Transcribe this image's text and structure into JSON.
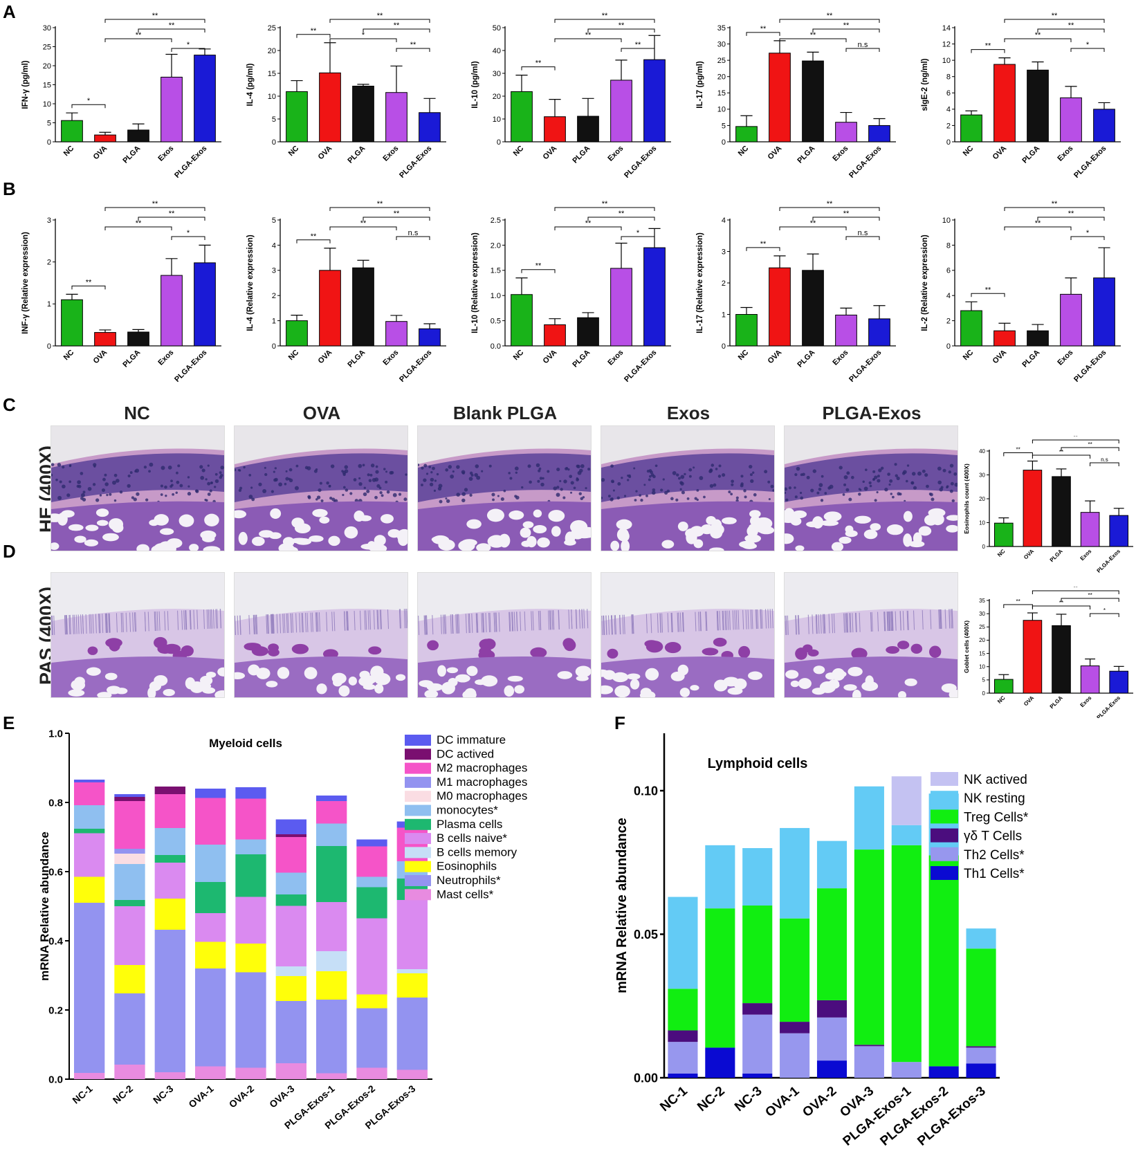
{
  "panels": {
    "A": "A",
    "B": "B",
    "C": "C",
    "D": "D",
    "E": "E",
    "F": "F"
  },
  "colors": {
    "NC": "#19b319",
    "OVA": "#f01414",
    "PLGA": "#111111",
    "Exos": "#b84fe6",
    "PLGA-Exos": "#1a1ad6"
  },
  "histology": {
    "columns": [
      "NC",
      "OVA",
      "Blank PLGA",
      "Exos",
      "PLGA-Exos"
    ],
    "rows": [
      "HE (400X)",
      "PAS (400X)"
    ]
  },
  "chart_data": [
    {
      "id": "A-IFN",
      "type": "bar",
      "panel": "A",
      "categories": [
        "NC",
        "OVA",
        "PLGA",
        "Exos",
        "PLGA-Exos"
      ],
      "values": [
        5.6,
        1.8,
        3.1,
        17.0,
        22.8
      ],
      "errors": [
        2.0,
        0.7,
        1.6,
        6.0,
        1.6
      ],
      "ylabel": "IFN-γ (pg/ml)",
      "ylim": [
        0,
        30
      ],
      "ticks": [
        "0",
        "5",
        "10",
        "15",
        "20",
        "25",
        "30"
      ],
      "sig": [
        {
          "from": 0,
          "to": 1,
          "label": "*"
        },
        {
          "from": 1,
          "to": 4,
          "label": "**"
        },
        {
          "from": 1,
          "to": 3,
          "label": "**"
        },
        {
          "from": 2,
          "to": 4,
          "label": "**"
        },
        {
          "from": 3,
          "to": 4,
          "label": "*"
        }
      ]
    },
    {
      "id": "A-IL4",
      "type": "bar",
      "panel": "A",
      "categories": [
        "NC",
        "OVA",
        "PLGA",
        "Exos",
        "PLGA-Exos"
      ],
      "values": [
        11.0,
        15.1,
        12.2,
        10.8,
        6.4
      ],
      "errors": [
        2.4,
        6.6,
        0.4,
        5.8,
        3.1
      ],
      "ylabel": "IL-4 (pg/ml)",
      "ylim": [
        0,
        25
      ],
      "ticks": [
        "0",
        "5",
        "10",
        "15",
        "20",
        "25"
      ],
      "sig": [
        {
          "from": 0,
          "to": 1,
          "label": "**"
        },
        {
          "from": 1,
          "to": 4,
          "label": "**"
        },
        {
          "from": 1,
          "to": 3,
          "label": "*"
        },
        {
          "from": 2,
          "to": 4,
          "label": "**"
        },
        {
          "from": 3,
          "to": 4,
          "label": "**"
        }
      ]
    },
    {
      "id": "A-IL10",
      "type": "bar",
      "panel": "A",
      "categories": [
        "NC",
        "OVA",
        "PLGA",
        "Exos",
        "PLGA-Exos"
      ],
      "values": [
        22.0,
        11.0,
        11.2,
        27.0,
        36.0
      ],
      "errors": [
        7.2,
        7.6,
        7.8,
        8.8,
        10.6
      ],
      "ylabel": "IL-10 (pg/ml)",
      "ylim": [
        0,
        50
      ],
      "ticks": [
        "0",
        "10",
        "20",
        "30",
        "40",
        "50"
      ],
      "sig": [
        {
          "from": 0,
          "to": 1,
          "label": "**"
        },
        {
          "from": 1,
          "to": 4,
          "label": "**"
        },
        {
          "from": 1,
          "to": 3,
          "label": "**"
        },
        {
          "from": 2,
          "to": 4,
          "label": "**"
        },
        {
          "from": 3,
          "to": 4,
          "label": "**"
        }
      ]
    },
    {
      "id": "A-IL17",
      "type": "bar",
      "panel": "A",
      "categories": [
        "NC",
        "OVA",
        "PLGA",
        "Exos",
        "PLGA-Exos"
      ],
      "values": [
        4.7,
        27.2,
        24.8,
        6.0,
        5.0
      ],
      "errors": [
        3.3,
        3.8,
        2.7,
        3.0,
        2.1
      ],
      "ylabel": "IL-17 (pg/ml)",
      "ylim": [
        0,
        35
      ],
      "ticks": [
        "0",
        "5",
        "10",
        "15",
        "20",
        "25",
        "30",
        "35"
      ],
      "sig": [
        {
          "from": 0,
          "to": 1,
          "label": "**"
        },
        {
          "from": 1,
          "to": 4,
          "label": "**"
        },
        {
          "from": 1,
          "to": 3,
          "label": "**"
        },
        {
          "from": 2,
          "to": 4,
          "label": "**"
        },
        {
          "from": 3,
          "to": 4,
          "label": "n.s"
        }
      ]
    },
    {
      "id": "A-sIgE",
      "type": "bar",
      "panel": "A",
      "categories": [
        "NC",
        "OVA",
        "PLGA",
        "Exos",
        "PLGA-Exos"
      ],
      "values": [
        3.3,
        9.5,
        8.8,
        5.4,
        4.0
      ],
      "errors": [
        0.5,
        0.8,
        1.0,
        1.4,
        0.8
      ],
      "ylabel": "sIgE-2 (ng/ml)",
      "ylim": [
        0,
        14
      ],
      "ticks": [
        "0",
        "2",
        "4",
        "6",
        "8",
        "10",
        "12",
        "14"
      ],
      "sig": [
        {
          "from": 0,
          "to": 1,
          "label": "**"
        },
        {
          "from": 1,
          "to": 4,
          "label": "**"
        },
        {
          "from": 1,
          "to": 3,
          "label": "**"
        },
        {
          "from": 2,
          "to": 4,
          "label": "**"
        },
        {
          "from": 3,
          "to": 4,
          "label": "*"
        }
      ]
    },
    {
      "id": "B-INF",
      "type": "bar",
      "panel": "B",
      "categories": [
        "NC",
        "OVA",
        "PLGA",
        "Exos",
        "PLGA-Exos"
      ],
      "values": [
        1.1,
        0.32,
        0.33,
        1.68,
        1.98
      ],
      "errors": [
        0.13,
        0.06,
        0.06,
        0.4,
        0.42
      ],
      "ylabel": "INF-γ (Relative expression)",
      "ylim": [
        0,
        3
      ],
      "ticks": [
        "0",
        "1",
        "2",
        "3"
      ],
      "sig": [
        {
          "from": 0,
          "to": 1,
          "label": "**"
        },
        {
          "from": 1,
          "to": 4,
          "label": "**"
        },
        {
          "from": 1,
          "to": 3,
          "label": "**"
        },
        {
          "from": 2,
          "to": 4,
          "label": "**"
        },
        {
          "from": 3,
          "to": 4,
          "label": "*"
        }
      ]
    },
    {
      "id": "B-IL4",
      "type": "bar",
      "panel": "B",
      "categories": [
        "NC",
        "OVA",
        "PLGA",
        "Exos",
        "PLGA-Exos"
      ],
      "values": [
        1.0,
        3.0,
        3.1,
        0.97,
        0.68
      ],
      "errors": [
        0.22,
        0.88,
        0.3,
        0.24,
        0.2
      ],
      "ylabel": "IL-4 (Relative expression)",
      "ylim": [
        0,
        5
      ],
      "ticks": [
        "0",
        "1",
        "2",
        "3",
        "4",
        "5"
      ],
      "sig": [
        {
          "from": 0,
          "to": 1,
          "label": "**"
        },
        {
          "from": 1,
          "to": 4,
          "label": "**"
        },
        {
          "from": 1,
          "to": 3,
          "label": "**"
        },
        {
          "from": 2,
          "to": 4,
          "label": "**"
        },
        {
          "from": 3,
          "to": 4,
          "label": "n.s"
        }
      ]
    },
    {
      "id": "B-IL10",
      "type": "bar",
      "panel": "B",
      "categories": [
        "NC",
        "OVA",
        "PLGA",
        "Exos",
        "PLGA-Exos"
      ],
      "values": [
        1.02,
        0.42,
        0.56,
        1.54,
        1.95
      ],
      "errors": [
        0.33,
        0.12,
        0.1,
        0.5,
        0.38
      ],
      "ylabel": "IL-10 (Relative expression)",
      "ylim": [
        0,
        2.5
      ],
      "ticks": [
        "0.0",
        "0.5",
        "1.0",
        "1.5",
        "2.0",
        "2.5"
      ],
      "sig": [
        {
          "from": 0,
          "to": 1,
          "label": "**"
        },
        {
          "from": 1,
          "to": 4,
          "label": "**"
        },
        {
          "from": 1,
          "to": 3,
          "label": "**"
        },
        {
          "from": 2,
          "to": 4,
          "label": "**"
        },
        {
          "from": 3,
          "to": 4,
          "label": "*"
        }
      ]
    },
    {
      "id": "B-IL17",
      "type": "bar",
      "panel": "B",
      "categories": [
        "NC",
        "OVA",
        "PLGA",
        "Exos",
        "PLGA-Exos"
      ],
      "values": [
        1.0,
        2.48,
        2.4,
        0.98,
        0.86
      ],
      "errors": [
        0.22,
        0.38,
        0.52,
        0.22,
        0.42
      ],
      "ylabel": "IL-17 (Relative expression)",
      "ylim": [
        0,
        4
      ],
      "ticks": [
        "0",
        "1",
        "2",
        "3",
        "4"
      ],
      "sig": [
        {
          "from": 0,
          "to": 1,
          "label": "**"
        },
        {
          "from": 1,
          "to": 4,
          "label": "**"
        },
        {
          "from": 1,
          "to": 3,
          "label": "**"
        },
        {
          "from": 2,
          "to": 4,
          "label": "**"
        },
        {
          "from": 3,
          "to": 4,
          "label": "n.s"
        }
      ]
    },
    {
      "id": "B-IL2",
      "type": "bar",
      "panel": "B",
      "categories": [
        "NC",
        "OVA",
        "PLGA",
        "Exos",
        "PLGA-Exos"
      ],
      "values": [
        2.8,
        1.2,
        1.2,
        4.1,
        5.4
      ],
      "errors": [
        0.7,
        0.6,
        0.5,
        1.3,
        2.4
      ],
      "ylabel": "IL-2 (Relative expression)",
      "ylim": [
        0,
        10
      ],
      "ticks": [
        "0",
        "2",
        "4",
        "6",
        "8",
        "10"
      ],
      "sig": [
        {
          "from": 0,
          "to": 1,
          "label": "**"
        },
        {
          "from": 1,
          "to": 4,
          "label": "**"
        },
        {
          "from": 1,
          "to": 3,
          "label": "**"
        },
        {
          "from": 2,
          "to": 4,
          "label": "**"
        },
        {
          "from": 3,
          "to": 4,
          "label": "*"
        }
      ]
    },
    {
      "id": "C-Eos",
      "type": "bar",
      "panel": "C",
      "categories": [
        "NC",
        "OVA",
        "PLGA",
        "Exos",
        "PLGA-Exos"
      ],
      "values": [
        9.8,
        32.0,
        29.3,
        14.3,
        13.0
      ],
      "errors": [
        2.2,
        3.8,
        3.2,
        4.8,
        3.0
      ],
      "ylabel": "Eosinophils count (400X)",
      "ylim": [
        0,
        40
      ],
      "ticks": [
        "0",
        "10",
        "20",
        "30",
        "40"
      ],
      "sig": [
        {
          "from": 0,
          "to": 1,
          "label": "**"
        },
        {
          "from": 1,
          "to": 4,
          "label": "**"
        },
        {
          "from": 1,
          "to": 3,
          "label": "**"
        },
        {
          "from": 2,
          "to": 4,
          "label": "**"
        },
        {
          "from": 3,
          "to": 4,
          "label": "n.s"
        }
      ]
    },
    {
      "id": "D-Goblet",
      "type": "bar",
      "panel": "D",
      "categories": [
        "NC",
        "OVA",
        "PLGA",
        "Exos",
        "PLGA-Exos"
      ],
      "values": [
        5.2,
        27.5,
        25.5,
        10.3,
        8.3
      ],
      "errors": [
        1.8,
        2.8,
        4.3,
        2.6,
        1.8
      ],
      "ylabel": "Goblet cells (400X)",
      "ylim": [
        0,
        35
      ],
      "ticks": [
        "0",
        "5",
        "10",
        "15",
        "20",
        "25",
        "30",
        "35"
      ],
      "sig": [
        {
          "from": 0,
          "to": 1,
          "label": "**"
        },
        {
          "from": 1,
          "to": 4,
          "label": "**"
        },
        {
          "from": 1,
          "to": 3,
          "label": "**"
        },
        {
          "from": 2,
          "to": 4,
          "label": "**"
        },
        {
          "from": 3,
          "to": 4,
          "label": "*"
        }
      ]
    },
    {
      "id": "E-Myeloid",
      "type": "stacked-bar",
      "panel": "E",
      "title": "Myeloid cells",
      "ylabel": "mRNA Relative abundance",
      "ylim": [
        0,
        1.0
      ],
      "ticks": [
        "0.0",
        "0.2",
        "0.4",
        "0.6",
        "0.8",
        "1.0"
      ],
      "categories": [
        "NC-1",
        "NC-2",
        "NC-3",
        "OVA-1",
        "OVA-2",
        "OVA-3",
        "PLGA-Exos-1",
        "PLGA-Exos-2",
        "PLGA-Exos-3"
      ],
      "legend": [
        "DC immature",
        "DC actived",
        "M2 macrophages",
        "M1 macrophages",
        "M0 macrophages",
        "monocytes*",
        "Plasma cells",
        "B cells naive*",
        "B cells memory",
        "Eosinophils",
        "Neutrophils*",
        "Mast cells*"
      ],
      "series": [
        {
          "name": "Mast cells*",
          "color": "#e88be0",
          "values": [
            0.018,
            0.042,
            0.02,
            0.037,
            0.033,
            0.046,
            0.017,
            0.033,
            0.027
          ]
        },
        {
          "name": "Neutrophils*",
          "color": "#9393f0",
          "values": [
            0.492,
            0.206,
            0.412,
            0.283,
            0.276,
            0.18,
            0.213,
            0.172,
            0.209
          ]
        },
        {
          "name": "Eosinophils",
          "color": "#ffff0a",
          "values": [
            0.075,
            0.082,
            0.09,
            0.077,
            0.083,
            0.072,
            0.082,
            0.04,
            0.07
          ]
        },
        {
          "name": "B cells memory",
          "color": "#c6dff7",
          "values": [
            0.0,
            0.0,
            0.0,
            0.0,
            0.0,
            0.028,
            0.058,
            0.0,
            0.012
          ]
        },
        {
          "name": "B cells naive*",
          "color": "#da8af0",
          "values": [
            0.126,
            0.17,
            0.104,
            0.083,
            0.135,
            0.175,
            0.142,
            0.22,
            0.2
          ]
        },
        {
          "name": "Plasma cells",
          "color": "#1db870",
          "values": [
            0.013,
            0.018,
            0.022,
            0.09,
            0.123,
            0.033,
            0.162,
            0.09,
            0.062
          ]
        },
        {
          "name": "monocytes*",
          "color": "#8fbff0",
          "values": [
            0.068,
            0.104,
            0.078,
            0.108,
            0.043,
            0.063,
            0.065,
            0.03,
            0.05
          ]
        },
        {
          "name": "M0 macrophages",
          "color": "#fadde3",
          "values": [
            0.0,
            0.03,
            0.0,
            0.0,
            0.0,
            0.0,
            0.0,
            0.0,
            0.0
          ]
        },
        {
          "name": "M1 macrophages",
          "color": "#9393f0",
          "values": [
            0.0,
            0.014,
            0.0,
            0.0,
            0.0,
            0.0,
            0.0,
            0.0,
            0.0
          ]
        },
        {
          "name": "M2 macrophages",
          "color": "#f554c8",
          "values": [
            0.066,
            0.138,
            0.098,
            0.135,
            0.118,
            0.103,
            0.065,
            0.088,
            0.097
          ]
        },
        {
          "name": "DC actived",
          "color": "#7a0f70",
          "values": [
            0.0,
            0.012,
            0.022,
            0.0,
            0.0,
            0.008,
            0.0,
            0.0,
            0.0
          ]
        },
        {
          "name": "DC immature",
          "color": "#5b5bf0",
          "values": [
            0.008,
            0.008,
            0.0,
            0.027,
            0.033,
            0.043,
            0.016,
            0.02,
            0.018
          ]
        }
      ]
    },
    {
      "id": "F-Lymphoid",
      "type": "stacked-bar",
      "panel": "F",
      "title": "Lymphoid cells",
      "ylabel": "mRNA Relative abundance",
      "ylim": [
        0,
        0.12
      ],
      "ticks": [
        "0.00",
        "0.05",
        "0.10"
      ],
      "tick_values": [
        0,
        0.05,
        0.1
      ],
      "categories": [
        "NC-1",
        "NC-2",
        "NC-3",
        "OVA-1",
        "OVA-2",
        "OVA-3",
        "PLGA-Exos-1",
        "PLGA-Exos-2",
        "PLGA-Exos-3"
      ],
      "legend": [
        "NK actived",
        "NK resting",
        "Treg Cells*",
        "γδ T Cells",
        "Th2 Cells*",
        "Th1 Cells*"
      ],
      "series": [
        {
          "name": "Th1 Cells*",
          "color": "#0a0ad2",
          "values": [
            0.0015,
            0.0105,
            0.0015,
            0.0,
            0.006,
            0.0,
            0.0,
            0.004,
            0.005
          ]
        },
        {
          "name": "Th2 Cells*",
          "color": "#9797ee",
          "values": [
            0.011,
            0.0,
            0.0205,
            0.0155,
            0.015,
            0.011,
            0.0055,
            0.0,
            0.0055
          ]
        },
        {
          "name": "γδ T Cells",
          "color": "#4b0d7e",
          "values": [
            0.004,
            0.0,
            0.004,
            0.004,
            0.006,
            0.0005,
            0.0,
            0.0,
            0.0005
          ]
        },
        {
          "name": "Treg Cells*",
          "color": "#11ee11",
          "values": [
            0.0145,
            0.0485,
            0.034,
            0.036,
            0.039,
            0.068,
            0.0755,
            0.0735,
            0.034
          ]
        },
        {
          "name": "NK resting",
          "color": "#63cbf5",
          "values": [
            0.032,
            0.022,
            0.02,
            0.0315,
            0.0165,
            0.022,
            0.007,
            0.0215,
            0.007
          ]
        },
        {
          "name": "NK actived",
          "color": "#c4c2f2",
          "values": [
            0.0,
            0.0,
            0.0,
            0.0,
            0.0,
            0.0,
            0.017,
            0.0,
            0.0
          ]
        }
      ]
    }
  ]
}
